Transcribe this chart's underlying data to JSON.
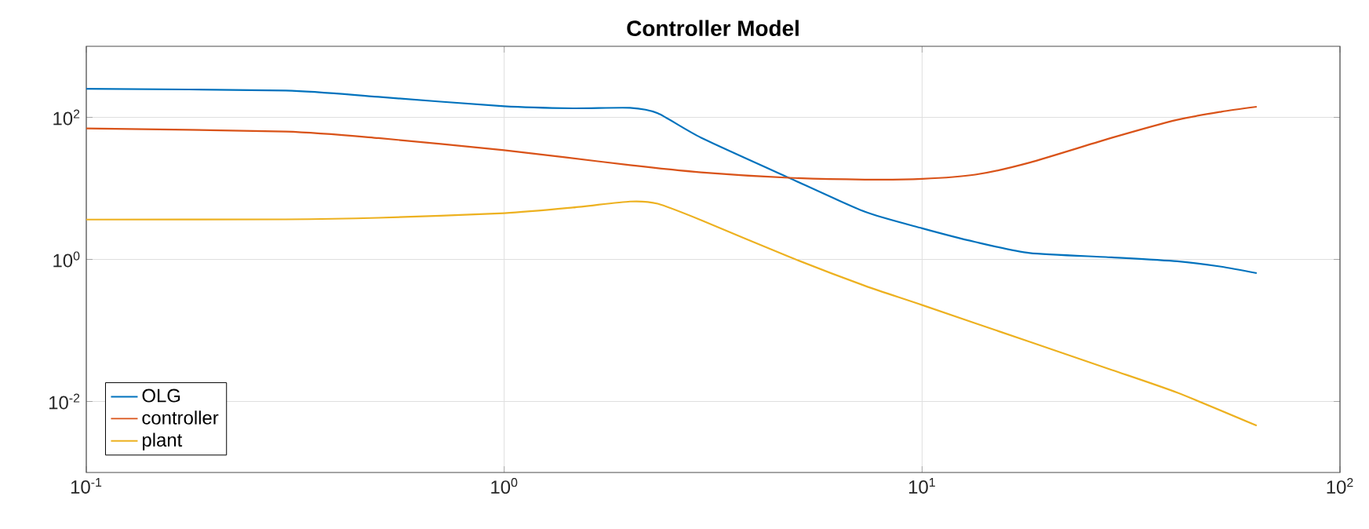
{
  "chart_data": {
    "type": "line",
    "title": "Controller Model",
    "xlim": [
      0.1,
      100
    ],
    "ylim": [
      0.001,
      1000
    ],
    "log": "xy",
    "grid": true,
    "legend": "bottom left",
    "xticks": [
      {
        "value": 0.1,
        "label": "10$^{-1}$"
      },
      {
        "value": 1,
        "label": "10$^{0}$"
      },
      {
        "value": 10,
        "label": "10$^{1}$"
      },
      {
        "value": 100,
        "label": "10$^{2}$"
      }
    ],
    "yticks": [
      {
        "value": 0.01,
        "label": "10$^{-2}$"
      },
      {
        "value": 1,
        "label": "10$^{0}$"
      },
      {
        "value": 100,
        "label": "10$^{2}$"
      }
    ],
    "series": [
      {
        "name": "OLG",
        "color": "#0072bd",
        "x": [
          0.1,
          0.3,
          0.5,
          1,
          1.46,
          2,
          2.33,
          2.96,
          4.8,
          7.3,
          10,
          13.4,
          18.1,
          28.4,
          40.8,
          52,
          63.2
        ],
        "values": [
          252,
          238,
          194,
          143,
          134,
          136,
          114,
          51.6,
          14.1,
          4.68,
          2.74,
          1.76,
          1.23,
          1.07,
          0.94,
          0.79,
          0.64
        ]
      },
      {
        "name": "controller",
        "color": "#d95319",
        "x": [
          0.1,
          0.3,
          0.5,
          1,
          2,
          2.96,
          4.8,
          7.3,
          10,
          13.4,
          18.1,
          28.4,
          40.8,
          52,
          63.2
        ],
        "values": [
          69.8,
          63,
          51,
          34.5,
          21.2,
          16.8,
          14.1,
          13.3,
          13.6,
          15.6,
          23.1,
          51.4,
          92.4,
          120,
          141
        ]
      },
      {
        "name": "plant",
        "color": "#edb120",
        "x": [
          0.1,
          0.3,
          0.5,
          1,
          1.46,
          2,
          2.33,
          2.96,
          4.8,
          7.3,
          10,
          18.1,
          28.4,
          40.8,
          63.2
        ],
        "values": [
          3.64,
          3.66,
          3.85,
          4.48,
          5.37,
          6.53,
          6.08,
          3.57,
          1.09,
          0.425,
          0.228,
          0.069,
          0.0279,
          0.0133,
          0.00457
        ]
      }
    ]
  }
}
